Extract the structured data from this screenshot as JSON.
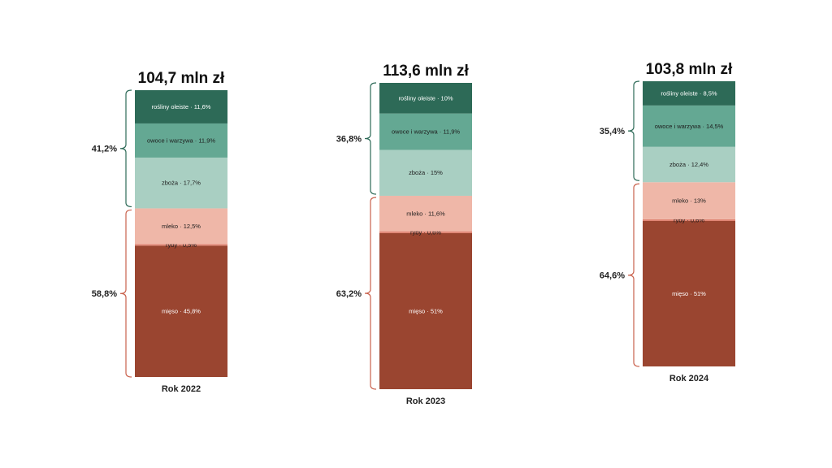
{
  "colors": {
    "rosliny": "#2d6a57",
    "owoce": "#64a893",
    "zboza": "#a9cfc2",
    "mleko": "#efb7a8",
    "ryby": "#e08472",
    "mieso": "#9a4530",
    "plant_bracket": "#2d6a57",
    "animal_bracket": "#c9614c"
  },
  "chart_data": {
    "type": "bar",
    "stacked": true,
    "segment_order_bottom_to_top": [
      "mięso",
      "ryby",
      "mleko",
      "zboża",
      "owoce i warzywa",
      "rośliny oleiste"
    ],
    "bars": [
      {
        "year_label": "Rok 2022",
        "total_label": "104,7 mln zł",
        "total": 104.7,
        "plant_group_label": "41,2%",
        "animal_group_label": "58,8%",
        "segments": [
          {
            "key": "mieso",
            "text": "mięso · 45,8%",
            "value": 45.8
          },
          {
            "key": "ryby",
            "text": "ryby · 0,5%",
            "value": 0.5
          },
          {
            "key": "mleko",
            "text": "mleko · 12,5%",
            "value": 12.5
          },
          {
            "key": "zboza",
            "text": "zboża · 17,7%",
            "value": 17.7
          },
          {
            "key": "owoce",
            "text": "owoce i warzywa · 11,9%",
            "value": 11.9
          },
          {
            "key": "rosliny",
            "text": "rośliny oleiste · 11,6%",
            "value": 11.6
          }
        ]
      },
      {
        "year_label": "Rok 2023",
        "total_label": "113,6 mln zł",
        "total": 113.6,
        "plant_group_label": "36,8%",
        "animal_group_label": "63,2%",
        "segments": [
          {
            "key": "mieso",
            "text": "mięso · 51%",
            "value": 51
          },
          {
            "key": "ryby",
            "text": "ryby · 0,6%",
            "value": 0.6
          },
          {
            "key": "mleko",
            "text": "mleko · 11,6%",
            "value": 11.6
          },
          {
            "key": "zboza",
            "text": "zboża · 15%",
            "value": 15
          },
          {
            "key": "owoce",
            "text": "owoce i warzywa · 11,9%",
            "value": 11.9
          },
          {
            "key": "rosliny",
            "text": "rośliny oleiste · 10%",
            "value": 10
          }
        ]
      },
      {
        "year_label": "Rok 2024",
        "total_label": "103,8 mln zł",
        "total": 103.8,
        "plant_group_label": "35,4%",
        "animal_group_label": "64,6%",
        "segments": [
          {
            "key": "mieso",
            "text": "mięso · 51%",
            "value": 51
          },
          {
            "key": "ryby",
            "text": "ryby · 0,6%",
            "value": 0.6
          },
          {
            "key": "mleko",
            "text": "mleko · 13%",
            "value": 13
          },
          {
            "key": "zboza",
            "text": "zboża · 12,4%",
            "value": 12.4
          },
          {
            "key": "owoce",
            "text": "owoce i warzywa · 14,5%",
            "value": 14.5
          },
          {
            "key": "rosliny",
            "text": "rośliny oleiste · 8,5%",
            "value": 8.5
          }
        ]
      }
    ]
  }
}
